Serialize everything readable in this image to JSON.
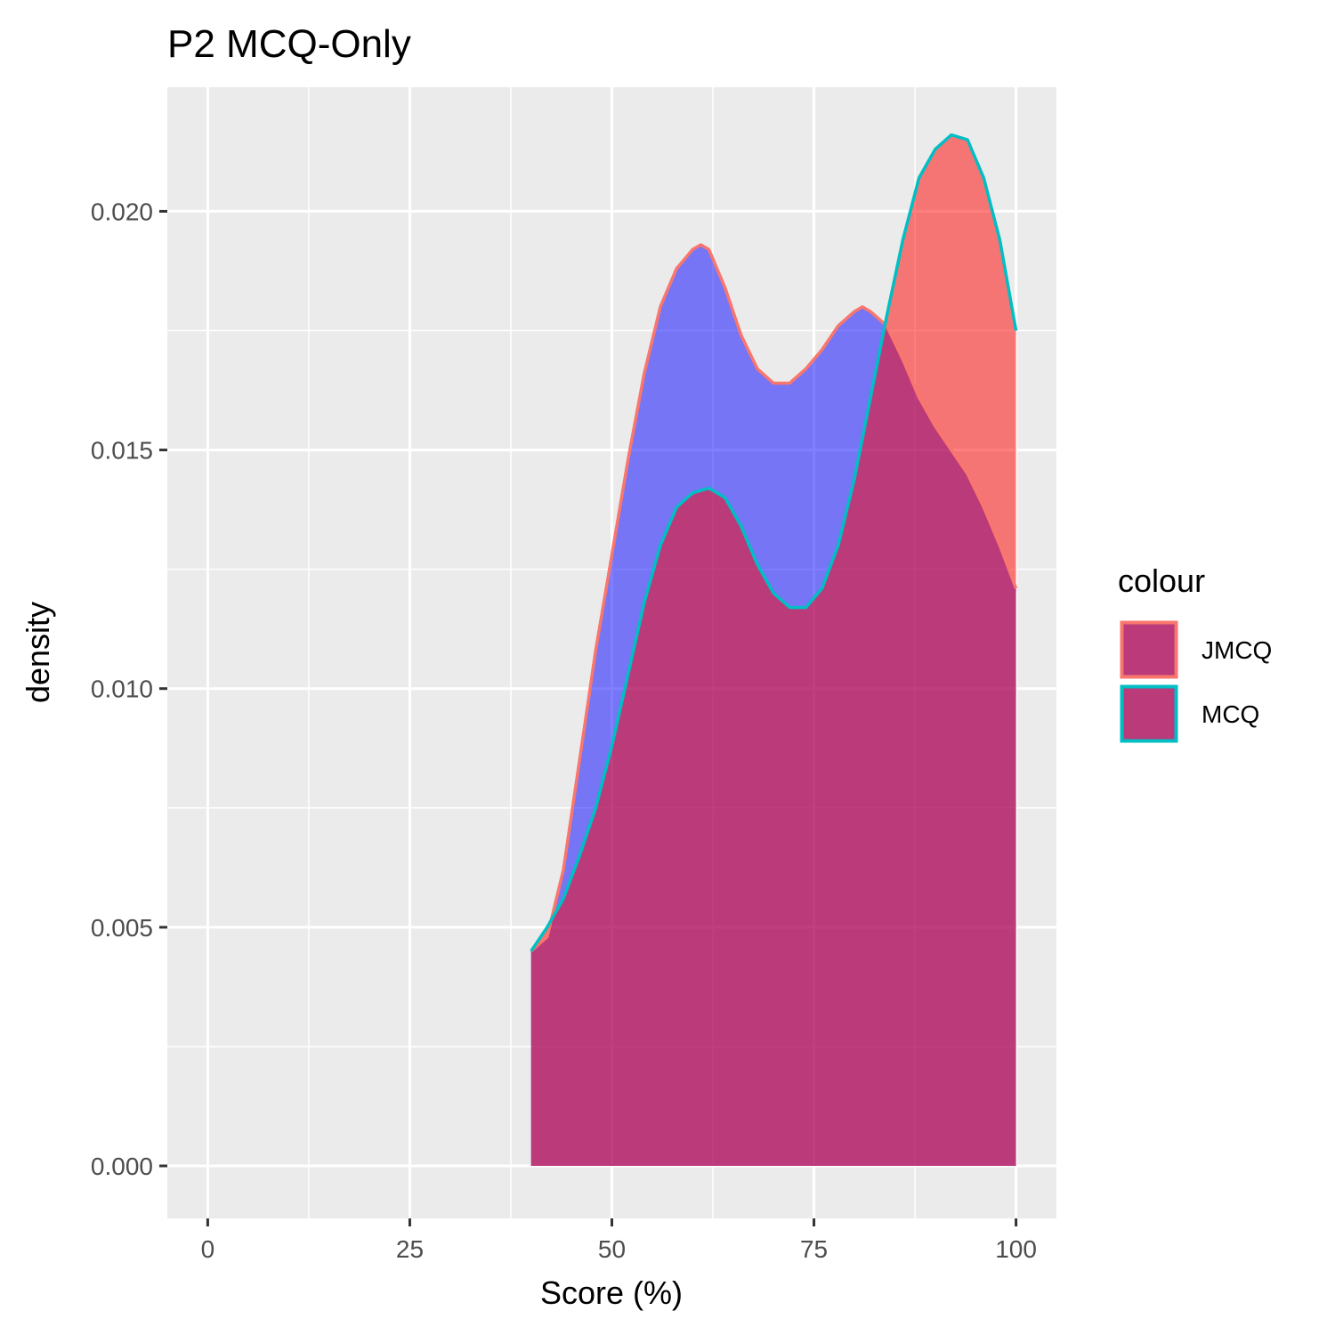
{
  "chart_data": {
    "type": "area",
    "title": "P2 MCQ-Only",
    "xlabel": "Score (%)",
    "ylabel": "density",
    "xlim": [
      -5,
      105
    ],
    "ylim": [
      -0.0011,
      0.0226
    ],
    "x_ticks": [
      0,
      25,
      50,
      75,
      100
    ],
    "x_tick_labels": [
      "0",
      "25",
      "50",
      "75",
      "100"
    ],
    "y_ticks": [
      0.0,
      0.005,
      0.01,
      0.015,
      0.02
    ],
    "y_tick_labels": [
      "0.000",
      "0.005",
      "0.010",
      "0.015",
      "0.020"
    ],
    "grid": true,
    "legend": {
      "title": "colour",
      "position": "right",
      "entries": [
        "JMCQ",
        "MCQ"
      ]
    },
    "series": [
      {
        "name": "JMCQ",
        "line_color": "#F8766D",
        "fill_color": "#0000FF",
        "points": [
          [
            40,
            0.0045
          ],
          [
            42,
            0.0048
          ],
          [
            44,
            0.0062
          ],
          [
            46,
            0.0085
          ],
          [
            48,
            0.0108
          ],
          [
            50,
            0.0128
          ],
          [
            52,
            0.0148
          ],
          [
            54,
            0.0166
          ],
          [
            56,
            0.018
          ],
          [
            58,
            0.0188
          ],
          [
            60,
            0.0192
          ],
          [
            61,
            0.0193
          ],
          [
            62,
            0.0192
          ],
          [
            64,
            0.0184
          ],
          [
            66,
            0.0174
          ],
          [
            68,
            0.0167
          ],
          [
            70,
            0.0164
          ],
          [
            72,
            0.0164
          ],
          [
            74,
            0.0167
          ],
          [
            76,
            0.0171
          ],
          [
            78,
            0.0176
          ],
          [
            80,
            0.0179
          ],
          [
            81,
            0.018
          ],
          [
            82,
            0.0179
          ],
          [
            84,
            0.0176
          ],
          [
            86,
            0.0169
          ],
          [
            88,
            0.0161
          ],
          [
            90,
            0.0155
          ],
          [
            92,
            0.015
          ],
          [
            94,
            0.0145
          ],
          [
            96,
            0.0138
          ],
          [
            98,
            0.013
          ],
          [
            100,
            0.0121
          ]
        ]
      },
      {
        "name": "MCQ",
        "line_color": "#00BFC4",
        "fill_color": "#FF0000",
        "points": [
          [
            40,
            0.0045
          ],
          [
            42,
            0.005
          ],
          [
            44,
            0.0056
          ],
          [
            46,
            0.0065
          ],
          [
            48,
            0.0075
          ],
          [
            50,
            0.0088
          ],
          [
            52,
            0.0103
          ],
          [
            54,
            0.0118
          ],
          [
            56,
            0.013
          ],
          [
            58,
            0.0138
          ],
          [
            60,
            0.0141
          ],
          [
            62,
            0.0142
          ],
          [
            64,
            0.014
          ],
          [
            66,
            0.0134
          ],
          [
            68,
            0.0126
          ],
          [
            70,
            0.012
          ],
          [
            72,
            0.0117
          ],
          [
            74,
            0.0117
          ],
          [
            76,
            0.0121
          ],
          [
            78,
            0.013
          ],
          [
            80,
            0.0144
          ],
          [
            82,
            0.0161
          ],
          [
            84,
            0.0178
          ],
          [
            86,
            0.0194
          ],
          [
            88,
            0.0207
          ],
          [
            90,
            0.0213
          ],
          [
            92,
            0.0216
          ],
          [
            94,
            0.0215
          ],
          [
            96,
            0.0207
          ],
          [
            98,
            0.0194
          ],
          [
            100,
            0.0175
          ]
        ]
      }
    ]
  }
}
